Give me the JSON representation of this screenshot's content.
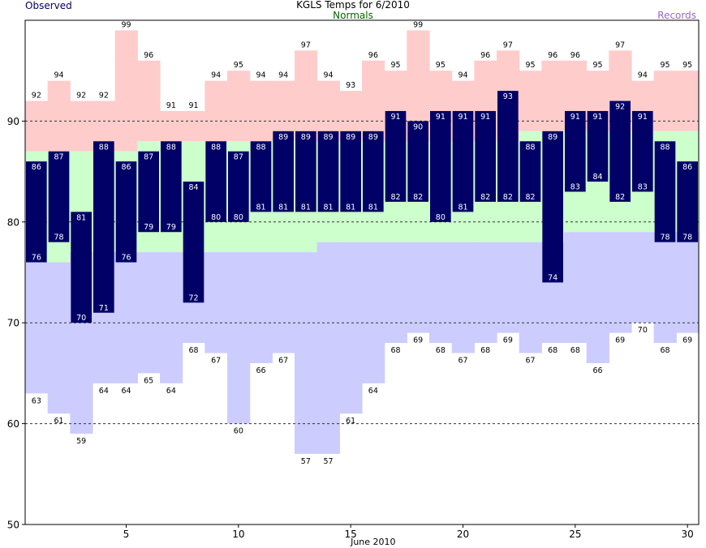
{
  "header": {
    "title": "KGLS Temps for 6/2010",
    "observed_label": "Observed",
    "normals_label": "Normals",
    "records_label": "Records"
  },
  "colors": {
    "observed": "#000066",
    "normals_text": "#006600",
    "records_text": "#9966cc",
    "record_high_band": "#ffcccc",
    "normal_band": "#ccffcc",
    "record_low_band": "#ccccff",
    "obs_label": "#ffffff"
  },
  "chart_data": {
    "type": "bar",
    "title": "KGLS Temps for 6/2010",
    "xlabel": "June 2010",
    "ylabel": "",
    "days": [
      1,
      2,
      3,
      4,
      5,
      6,
      7,
      8,
      9,
      10,
      11,
      12,
      13,
      14,
      15,
      16,
      17,
      18,
      19,
      20,
      21,
      22,
      23,
      24,
      25,
      26,
      27,
      28,
      29,
      30
    ],
    "xticks": [
      5,
      10,
      15,
      20,
      25,
      30
    ],
    "ylim": [
      50,
      100
    ],
    "yticks": [
      50,
      60,
      70,
      80,
      90
    ],
    "gridlines": [
      60,
      70,
      80,
      90
    ],
    "series": [
      {
        "name": "Observed",
        "kind": "observed_high",
        "values": [
          86,
          87,
          81,
          88,
          86,
          87,
          88,
          84,
          88,
          87,
          88,
          89,
          89,
          89,
          89,
          89,
          91,
          90,
          91,
          91,
          91,
          93,
          88,
          89,
          91,
          91,
          92,
          91,
          88,
          86
        ]
      },
      {
        "name": "Observed",
        "kind": "observed_low",
        "values": [
          76,
          78,
          70,
          71,
          76,
          79,
          79,
          72,
          80,
          80,
          81,
          81,
          81,
          81,
          81,
          81,
          82,
          82,
          80,
          81,
          82,
          82,
          82,
          74,
          83,
          84,
          82,
          83,
          78,
          78
        ]
      },
      {
        "name": "Normals",
        "kind": "normal_high",
        "values": [
          87,
          87,
          87,
          87,
          87,
          88,
          88,
          88,
          88,
          88,
          88,
          88,
          88,
          88,
          88,
          88,
          88,
          88,
          88,
          88,
          88,
          88,
          89,
          89,
          89,
          89,
          89,
          89,
          89,
          89
        ]
      },
      {
        "name": "Normals",
        "kind": "normal_low",
        "values": [
          76,
          76,
          77,
          77,
          77,
          77,
          77,
          77,
          77,
          77,
          77,
          77,
          77,
          78,
          78,
          78,
          78,
          78,
          78,
          78,
          78,
          78,
          78,
          78,
          79,
          79,
          79,
          79,
          79,
          79
        ]
      },
      {
        "name": "Records",
        "kind": "record_high",
        "values": [
          92,
          94,
          92,
          92,
          99,
          96,
          91,
          91,
          94,
          95,
          94,
          94,
          97,
          94,
          93,
          96,
          95,
          99,
          95,
          94,
          96,
          97,
          95,
          96,
          96,
          95,
          97,
          94,
          95,
          95
        ]
      },
      {
        "name": "Records",
        "kind": "record_low",
        "values": [
          63,
          61,
          59,
          64,
          64,
          65,
          64,
          68,
          67,
          60,
          66,
          67,
          57,
          57,
          61,
          64,
          68,
          69,
          68,
          67,
          68,
          69,
          67,
          68,
          68,
          66,
          69,
          70,
          68,
          69
        ]
      }
    ]
  }
}
